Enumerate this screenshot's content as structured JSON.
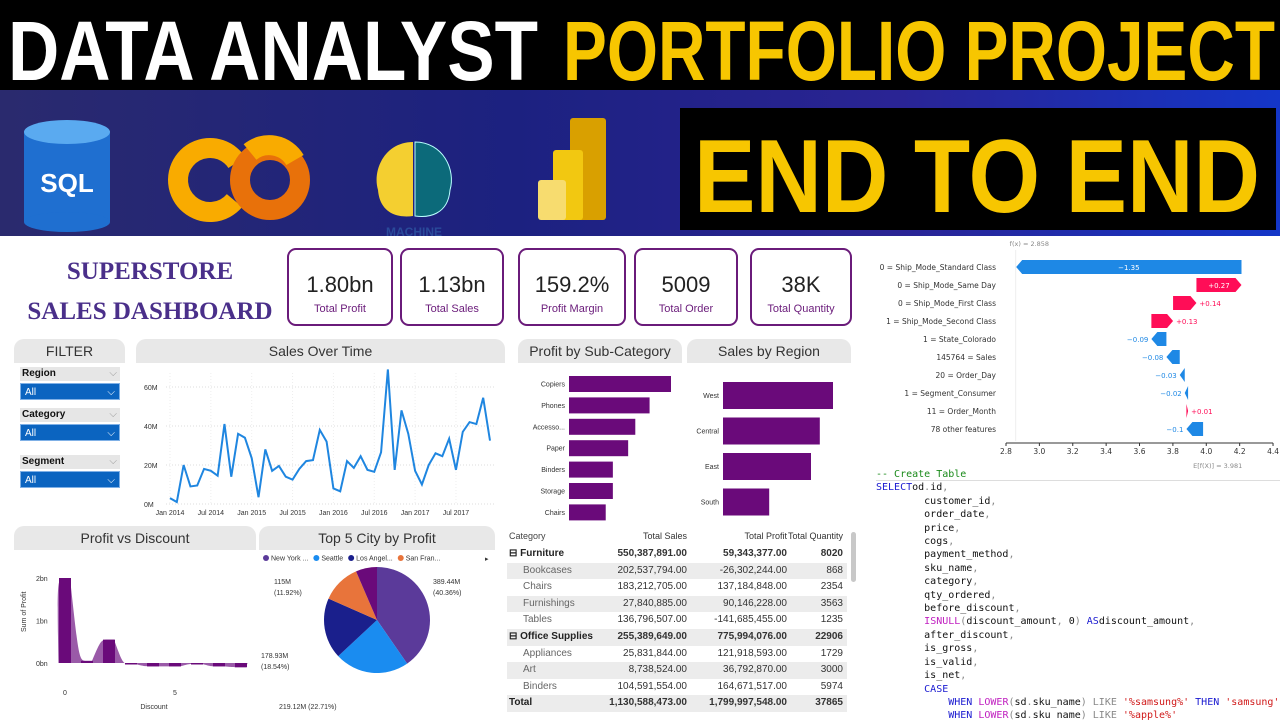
{
  "banner": {
    "title_white": "DATA ANALYST",
    "title_yellow": "PORTFOLIO PROJECT",
    "subtitle": "END TO END",
    "yellow": "#f7c600",
    "logos": [
      {
        "name": "sql-logo",
        "text": "SQL"
      },
      {
        "name": "colab-logo",
        "text": "CO"
      },
      {
        "name": "machine-learning-brain-logo",
        "text": "MACHINE"
      },
      {
        "name": "power-bi-logo"
      }
    ]
  },
  "dashboard": {
    "title_line1": "SUPERSTORE",
    "title_line2": "SALES DASHBOARD",
    "accent": "#6a0a7a",
    "kpis": [
      {
        "value": "1.80bn",
        "label": "Total Profit"
      },
      {
        "value": "1.13bn",
        "label": "Total Sales"
      },
      {
        "value": "159.2%",
        "label": "Profit Margin"
      },
      {
        "value": "5009",
        "label": "Total Order"
      },
      {
        "value": "38K",
        "label": "Total Quantity"
      }
    ],
    "filter": {
      "title": "FILTER",
      "fields": [
        {
          "label": "Region",
          "value": "All"
        },
        {
          "label": "Category",
          "value": "All"
        },
        {
          "label": "Segment",
          "value": "All"
        }
      ]
    },
    "table": {
      "headers": [
        "Category",
        "Total Sales",
        "Total Profit",
        "Total Quantity"
      ],
      "rows": [
        {
          "type": "group",
          "name": "Furniture",
          "sales": "550,387,891.00",
          "profit": "59,343,377.00",
          "qty": "8020"
        },
        {
          "type": "sub",
          "name": "Bookcases",
          "sales": "202,537,794.00",
          "profit": "-26,302,244.00",
          "qty": "868"
        },
        {
          "type": "sub",
          "name": "Chairs",
          "sales": "183,212,705.00",
          "profit": "137,184,848.00",
          "qty": "2354"
        },
        {
          "type": "sub",
          "name": "Furnishings",
          "sales": "27,840,885.00",
          "profit": "90,146,228.00",
          "qty": "3563"
        },
        {
          "type": "sub",
          "name": "Tables",
          "sales": "136,796,507.00",
          "profit": "-141,685,455.00",
          "qty": "1235"
        },
        {
          "type": "group",
          "name": "Office Supplies",
          "sales": "255,389,649.00",
          "profit": "775,994,076.00",
          "qty": "22906"
        },
        {
          "type": "sub",
          "name": "Appliances",
          "sales": "25,831,844.00",
          "profit": "121,918,593.00",
          "qty": "1729"
        },
        {
          "type": "sub",
          "name": "Art",
          "sales": "8,738,524.00",
          "profit": "36,792,870.00",
          "qty": "3000"
        },
        {
          "type": "sub",
          "name": "Binders",
          "sales": "104,591,554.00",
          "profit": "164,671,517.00",
          "qty": "5974"
        },
        {
          "type": "total",
          "name": "Total",
          "sales": "1,130,588,473.00",
          "profit": "1,799,997,548.00",
          "qty": "37865"
        }
      ]
    }
  },
  "chart_data": [
    {
      "type": "line",
      "title": "Sales Over Time",
      "color": "#1f86e0",
      "yticks": [
        "0M",
        "20M",
        "40M",
        "60M"
      ],
      "ylim": [
        0,
        70
      ],
      "xticks": [
        "Jan 2014",
        "Jul 2014",
        "Jan 2015",
        "Jul 2015",
        "Jan 2016",
        "Jul 2016",
        "Jan 2017",
        "Jul 2017"
      ],
      "x_start": "Jan 2014",
      "x_step": "month",
      "values": [
        3,
        1,
        20,
        9,
        9.5,
        18,
        17,
        14.5,
        41,
        14,
        36,
        34,
        23.5,
        3.5,
        28,
        17,
        19.5,
        14,
        12.5,
        18,
        22,
        22.5,
        38,
        32,
        8,
        6.5,
        22,
        18.5,
        24.5,
        17.5,
        16.5,
        26.5,
        69,
        17.5,
        48,
        36,
        17,
        10,
        20,
        26,
        24.5,
        33.5,
        17.5,
        37,
        42,
        41,
        54.5,
        32.5
      ],
      "grid": true
    },
    {
      "type": "bar",
      "orientation": "horizontal",
      "title": "Profit by Sub-Category",
      "categories": [
        "Copiers",
        "Phones",
        "Accesso...",
        "Paper",
        "Binders",
        "Storage",
        "Chairs"
      ],
      "values": [
        100,
        79,
        65,
        58,
        43,
        43,
        36
      ],
      "color": "#6a0a7a"
    },
    {
      "type": "bar",
      "orientation": "horizontal",
      "title": "Sales by Region",
      "categories": [
        "West",
        "Central",
        "East",
        "South"
      ],
      "values": [
        100,
        88,
        80,
        42
      ],
      "color": "#6a0a7a"
    },
    {
      "type": "area",
      "title": "Profit vs Discount",
      "xlabel": "Discount",
      "ylabel": "Sum of Profit",
      "xticks": [
        "0",
        "5"
      ],
      "yticks": [
        "0bn",
        "1bn",
        "2bn"
      ],
      "ylim": [
        -0.2,
        2
      ],
      "x": [
        0,
        1,
        2,
        3,
        4,
        5,
        6,
        7,
        8
      ],
      "values": [
        2.0,
        0.05,
        0.55,
        -0.03,
        -0.08,
        -0.08,
        -0.02,
        -0.08,
        -0.1
      ],
      "color": "#6a0a7a"
    },
    {
      "type": "pie",
      "title": "Top 5 City by Profit",
      "slices": [
        {
          "name": "New York ...",
          "value": 389.44,
          "label": "389.44M\n(40.36%)",
          "color": "#5b3a9a"
        },
        {
          "name": "Seattle",
          "value": 219.12,
          "label": "219.12M (22.71%)",
          "color": "#1a8cf0"
        },
        {
          "name": "Los Angel...",
          "value": 178.93,
          "label": "178.93M\n(18.54%)",
          "color": "#1a1f8c"
        },
        {
          "name": "San Fran...",
          "value": 115,
          "label": "115M\n(11.92%)",
          "color": "#e8743b"
        },
        {
          "name": "",
          "value": 62.4,
          "label": "",
          "color": "#6a0a7a"
        }
      ]
    },
    {
      "type": "waterfall",
      "fx_label": "f(x) = 2.858",
      "ex_label": "E[f(X)] = 3.981",
      "base": 3.981,
      "xlim": [
        2.8,
        4.4
      ],
      "xticks": [
        "2.8",
        "3.0",
        "3.2",
        "3.4",
        "3.6",
        "3.8",
        "4.0",
        "4.2",
        "4.4"
      ],
      "pos_color": "#ff0d57",
      "neg_color": "#1e88e5",
      "features": [
        {
          "value": "0",
          "name": "Ship_Mode_Standard Class",
          "shap": -1.35,
          "label": "−1.35"
        },
        {
          "value": "0",
          "name": "Ship_Mode_Same Day",
          "shap": 0.27,
          "label": "+0.27"
        },
        {
          "value": "0",
          "name": "Ship_Mode_First Class",
          "shap": 0.14,
          "label": "+0.14"
        },
        {
          "value": "1",
          "name": "Ship_Mode_Second Class",
          "shap": 0.13,
          "label": "+0.13"
        },
        {
          "value": "1",
          "name": "State_Colorado",
          "shap": -0.09,
          "label": "−0.09"
        },
        {
          "value": "145764",
          "name": "Sales",
          "shap": -0.08,
          "label": "−0.08"
        },
        {
          "value": "20",
          "name": "Order_Day",
          "shap": -0.03,
          "label": "−0.03"
        },
        {
          "value": "1",
          "name": "Segment_Consumer",
          "shap": -0.02,
          "label": "−0.02"
        },
        {
          "value": "11",
          "name": "Order_Month",
          "shap": 0.01,
          "label": "+0.01"
        },
        {
          "value": "",
          "name": "78 other features",
          "shap": -0.1,
          "label": "−0.1"
        }
      ]
    }
  ],
  "code": {
    "lines": [
      [
        [
          "cm",
          "-- Create Table"
        ]
      ],
      [
        [
          "kw",
          "SELECT"
        ],
        [
          "",
          "od"
        ],
        [
          "gr",
          "."
        ],
        [
          "",
          "id"
        ],
        [
          "gr",
          ","
        ]
      ],
      [
        [
          "",
          "        customer_id"
        ],
        [
          "gr",
          ","
        ]
      ],
      [
        [
          "",
          "        order_date"
        ],
        [
          "gr",
          ","
        ]
      ],
      [
        [
          "",
          "        price"
        ],
        [
          "gr",
          ","
        ]
      ],
      [
        [
          "",
          "        cogs"
        ],
        [
          "gr",
          ","
        ]
      ],
      [
        [
          "",
          "        payment_method"
        ],
        [
          "gr",
          ","
        ]
      ],
      [
        [
          "",
          "        sku_name"
        ],
        [
          "gr",
          ","
        ]
      ],
      [
        [
          "",
          "        category"
        ],
        [
          "gr",
          ","
        ]
      ],
      [
        [
          "",
          "        qty_ordered"
        ],
        [
          "gr",
          ","
        ]
      ],
      [
        [
          "",
          "        before_discount"
        ],
        [
          "gr",
          ","
        ]
      ],
      [
        [
          "",
          "        "
        ],
        [
          "fn",
          "ISNULL"
        ],
        [
          "gr",
          "("
        ],
        [
          "",
          "discount_amount"
        ],
        [
          "gr",
          ", "
        ],
        [
          "",
          "0"
        ],
        [
          "gr",
          ") "
        ],
        [
          "kw",
          "AS"
        ],
        [
          "",
          "discount_amount"
        ],
        [
          "gr",
          ","
        ]
      ],
      [
        [
          "",
          "        after_discount"
        ],
        [
          "gr",
          ","
        ]
      ],
      [
        [
          "",
          "        is_gross"
        ],
        [
          "gr",
          ","
        ]
      ],
      [
        [
          "",
          "        is_valid"
        ],
        [
          "gr",
          ","
        ]
      ],
      [
        [
          "",
          "        is_net"
        ],
        [
          "gr",
          ","
        ]
      ],
      [
        [
          "kw",
          "        CASE"
        ]
      ],
      [
        [
          "kw",
          "            WHEN "
        ],
        [
          "fn",
          "LOWER"
        ],
        [
          "gr",
          "("
        ],
        [
          "",
          "sd"
        ],
        [
          "gr",
          "."
        ],
        [
          "",
          "sku_name"
        ],
        [
          "gr",
          ") LIKE "
        ],
        [
          "st",
          "'%samsung%'"
        ],
        [
          "kw",
          " THEN "
        ],
        [
          "st",
          "'samsung'"
        ]
      ],
      [
        [
          "kw",
          "            WHEN "
        ],
        [
          "fn",
          "LOWER"
        ],
        [
          "gr",
          "("
        ],
        [
          "",
          "sd"
        ],
        [
          "gr",
          "."
        ],
        [
          "",
          "sku_name"
        ],
        [
          "gr",
          ") LIKE "
        ],
        [
          "st",
          "'%apple%'"
        ]
      ]
    ]
  }
}
